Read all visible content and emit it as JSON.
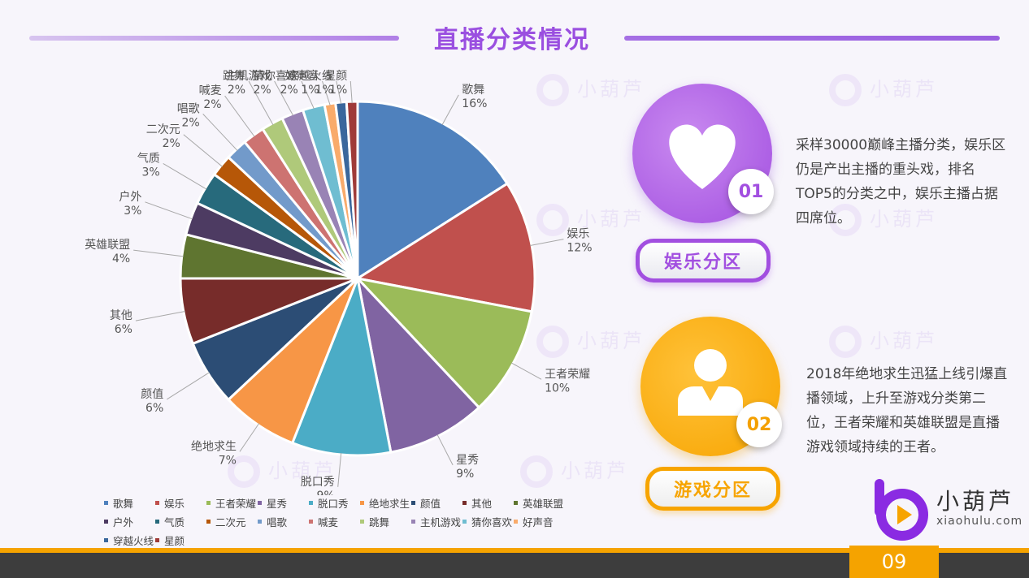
{
  "page": {
    "title": "直播分类情况",
    "page_number": "09"
  },
  "watermark": {
    "text": "小葫芦"
  },
  "cards": [
    {
      "number": "01",
      "pill_label": "娱乐分区",
      "description": "采样30000巅峰主播分类，娱乐区仍是产出主播的重头戏，排名TOP5的分类之中，娱乐主播占据四席位。",
      "icon": "heart-icon",
      "color": "#a24fe0"
    },
    {
      "number": "02",
      "pill_label": "游戏分区",
      "description": "2018年绝地求生迅猛上线引爆直播领域，上升至游戏分类第二位，王者荣耀和英雄联盟是直播游戏领域持续的王者。",
      "icon": "user-icon",
      "color": "#f7a400"
    }
  ],
  "brand": {
    "name": "小葫芦",
    "url": "xiaohulu.com"
  },
  "chart_data": {
    "type": "pie",
    "title": "",
    "legend_position": "bottom",
    "slices": [
      {
        "label": "歌舞",
        "value": 16,
        "pct": "16%",
        "color": "#4f81bd"
      },
      {
        "label": "娱乐",
        "value": 12,
        "pct": "12%",
        "color": "#c0504d"
      },
      {
        "label": "王者荣耀",
        "value": 10,
        "pct": "10%",
        "color": "#9bbb59"
      },
      {
        "label": "星秀",
        "value": 9,
        "pct": "9%",
        "color": "#8064a2"
      },
      {
        "label": "脱口秀",
        "value": 9,
        "pct": "9%",
        "color": "#4bacc6"
      },
      {
        "label": "绝地求生",
        "value": 7,
        "pct": "7%",
        "color": "#f79646"
      },
      {
        "label": "颜值",
        "value": 6,
        "pct": "6%",
        "color": "#2c4d75"
      },
      {
        "label": "其他",
        "value": 6,
        "pct": "6%",
        "color": "#772c2a"
      },
      {
        "label": "英雄联盟",
        "value": 4,
        "pct": "4%",
        "color": "#5f7530"
      },
      {
        "label": "户外",
        "value": 3,
        "pct": "3%",
        "color": "#4d3b62"
      },
      {
        "label": "气质",
        "value": 3,
        "pct": "3%",
        "color": "#276a7c"
      },
      {
        "label": "二次元",
        "value": 2,
        "pct": "2%",
        "color": "#b65708"
      },
      {
        "label": "唱歌",
        "value": 2,
        "pct": "2%",
        "color": "#729aca"
      },
      {
        "label": "喊麦",
        "value": 2,
        "pct": "2%",
        "color": "#cd7371"
      },
      {
        "label": "跳舞",
        "value": 2,
        "pct": "2%",
        "color": "#afc97a"
      },
      {
        "label": "主机游戏",
        "value": 2,
        "pct": "2%",
        "color": "#9983b5"
      },
      {
        "label": "猜你喜欢",
        "value": 2,
        "pct": "2%",
        "color": "#6fbdd1"
      },
      {
        "label": "好声音",
        "value": 1,
        "pct": "1%",
        "color": "#f9ab6b"
      },
      {
        "label": "穿越火线",
        "value": 1,
        "pct": "1%",
        "color": "#3a679c"
      },
      {
        "label": "星颜",
        "value": 1,
        "pct": "1%",
        "color": "#9f3b38"
      }
    ]
  }
}
